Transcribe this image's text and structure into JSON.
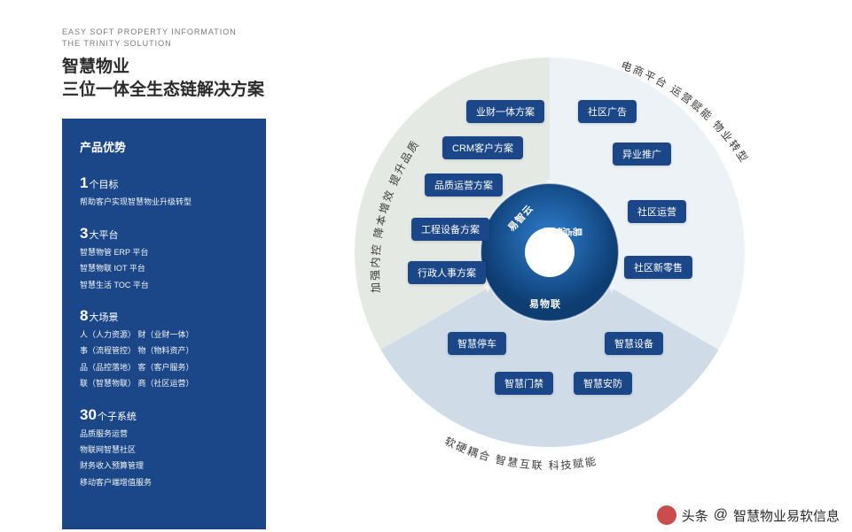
{
  "header": {
    "en_line1": "EASY SOFT PROPERTY INFORMATION",
    "en_line2": "THE TRINITY SOLUTION",
    "cn_line1": "智慧物业",
    "cn_line2": "三位一体全生态链解决方案"
  },
  "sidebar": {
    "title": "产品优势",
    "blocks": [
      {
        "num": "1",
        "unit": "个目标",
        "lines": [
          "帮助客户实现智慧物业升级转型"
        ]
      },
      {
        "num": "3",
        "unit": "大平台",
        "lines": [
          "智慧物管  ERP  平台",
          "智慧物联  IOT  平台",
          "智慧生活  TOC  平台"
        ]
      },
      {
        "num": "8",
        "unit": "大场景",
        "lines": [
          "人（人力资源）  财（业财一体）",
          "事（流程管控）  物（物料资产）",
          "品（品控落地）  客（客户服务）",
          "联（智慧物联）  商（社区运营）"
        ]
      },
      {
        "num": "30",
        "unit": "个子系统",
        "lines": [
          "品质服务运营",
          "物联网智慧社区",
          "财务收入预算管理",
          "移动客户端增值服务"
        ]
      }
    ]
  },
  "diagram": {
    "colors": {
      "sector_left": "#e5e9e3",
      "sector_right": "#edf2f6",
      "sector_bottom": "#cfdce7",
      "hub_outer_a": "#1b5fa8",
      "hub_outer_b": "#0e3d72",
      "hub_inner": "#ffffff",
      "pill": "#1b4788",
      "ring_stroke": "#ffffff"
    },
    "hub_labels": [
      "易智云",
      "易点爱家",
      "易物联"
    ],
    "sectors": {
      "left": {
        "arc_text": "加强内控 降本增效 提升品质",
        "pills": [
          "业财一体方案",
          "CRM客户方案",
          "品质运营方案",
          "工程设备方案",
          "行政人事方案"
        ]
      },
      "right": {
        "arc_text": "电商平台 运营赋能 物业转型",
        "pills": [
          "社区广告",
          "异业推广",
          "社区运营",
          "社区新零售"
        ]
      },
      "bottom": {
        "arc_text": "软硬耦合 智慧互联 科技赋能",
        "pills": [
          "智慧停车",
          "智慧设备",
          "智慧门禁",
          "智慧安防"
        ]
      }
    }
  },
  "footer": {
    "brand": "头条",
    "author": "智慧物业易软信息"
  }
}
